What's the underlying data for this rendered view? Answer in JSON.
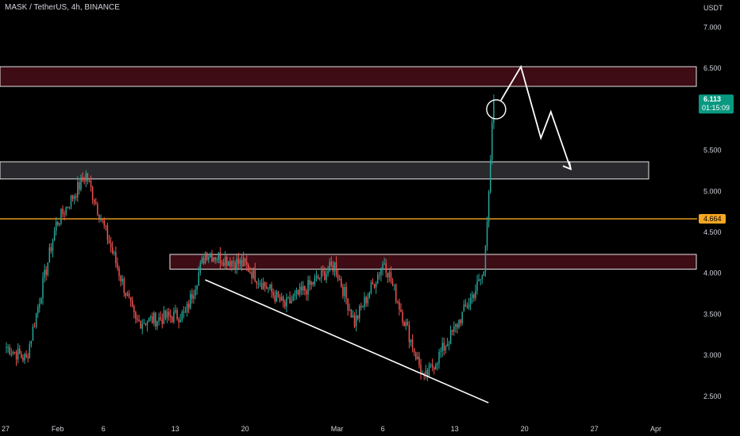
{
  "title": "MASK / TetherUS, 4h, BINANCE",
  "currency_label": "USDT",
  "colors": {
    "background": "#000000",
    "up": "#26a69a",
    "down": "#ef5350",
    "support_line": "#f5a623",
    "price_badge": "#089981",
    "support_badge": "#f5a623",
    "zone_red_fill": "#3d0c14",
    "zone_gray_fill": "#2a2a2e",
    "text": "#d1d4dc"
  },
  "chart_data": {
    "type": "candlestick",
    "ylim": [
      2.2,
      7.3
    ],
    "y_ticks": [
      "7.000",
      "6.500",
      "5.500",
      "5.000",
      "4.500",
      "4.000",
      "3.500",
      "3.000",
      "2.500"
    ],
    "x_tick_labels": [
      "27",
      "Feb",
      "6",
      "13",
      "20",
      "Mar",
      "6",
      "13",
      "20",
      "27",
      "Apr"
    ],
    "last_price": {
      "label": "6.113",
      "countdown": "01:15:09"
    },
    "support_level": {
      "label": "4.664"
    },
    "zones": [
      {
        "name": "resistance-zone",
        "low": 6.28,
        "high": 6.52,
        "color": "red"
      },
      {
        "name": "retest-zone",
        "low": 5.15,
        "high": 5.36,
        "color": "gray"
      },
      {
        "name": "mid-zone",
        "low": 4.05,
        "high": 4.23,
        "color": "red"
      }
    ],
    "key_points": [
      {
        "date": "Jan 27",
        "close": 3.1
      },
      {
        "date": "Jan 29",
        "close": 2.95
      },
      {
        "date": "Feb 1",
        "close": 4.6
      },
      {
        "date": "Feb 4",
        "close": 5.2
      },
      {
        "date": "Feb 6",
        "close": 4.5
      },
      {
        "date": "Feb 9",
        "close": 3.4
      },
      {
        "date": "Feb 14",
        "close": 3.5
      },
      {
        "date": "Feb 16",
        "close": 4.25
      },
      {
        "date": "Feb 20",
        "close": 4.1
      },
      {
        "date": "Feb 24",
        "close": 3.6
      },
      {
        "date": "Mar 1",
        "close": 4.1
      },
      {
        "date": "Mar 3",
        "close": 3.4
      },
      {
        "date": "Mar 6",
        "close": 4.15
      },
      {
        "date": "Mar 10",
        "close": 2.7
      },
      {
        "date": "Mar 13",
        "close": 3.3
      },
      {
        "date": "Mar 16",
        "close": 4.0
      },
      {
        "date": "Mar 17",
        "close": 6.11
      }
    ],
    "trendline": {
      "start": {
        "date": "Feb 16",
        "price": 3.92
      },
      "end": {
        "date": "Mar 14",
        "price": 2.42
      }
    },
    "projection": [
      {
        "date": "Mar 17",
        "price": 6.11
      },
      {
        "date": "Mar 19",
        "price": 6.52
      },
      {
        "date": "Mar 21",
        "price": 5.65
      },
      {
        "date": "Mar 22",
        "price": 5.97
      },
      {
        "date": "Mar 24",
        "price": 5.27
      }
    ]
  }
}
